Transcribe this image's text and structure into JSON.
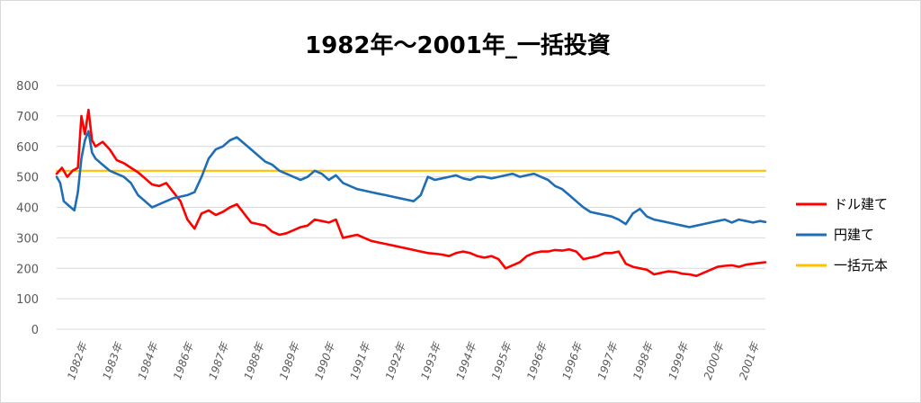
{
  "chart_data": {
    "type": "line",
    "title": "1982年～2001年_一括投資",
    "xlabel": "",
    "ylabel": "",
    "ylim": [
      0,
      800
    ],
    "yticks": [
      0,
      100,
      200,
      300,
      400,
      500,
      600,
      700,
      800
    ],
    "grid": true,
    "legend_position": "right",
    "x_tick_labels": [
      "1982年",
      "1983年",
      "1984年",
      "1986年",
      "1987年",
      "1988年",
      "1989年",
      "1990年",
      "1991年",
      "1992年",
      "1993年",
      "1994年",
      "1995年",
      "1996年",
      "1996年",
      "1997年",
      "1998年",
      "1999年",
      "2000年",
      "2001年"
    ],
    "x_range": [
      1981.9,
      2001.95
    ],
    "series": [
      {
        "name": "ドル建て",
        "color": "#ff0000",
        "points": [
          [
            1981.9,
            510
          ],
          [
            1982.05,
            530
          ],
          [
            1982.2,
            500
          ],
          [
            1982.35,
            520
          ],
          [
            1982.5,
            530
          ],
          [
            1982.6,
            700
          ],
          [
            1982.7,
            640
          ],
          [
            1982.8,
            720
          ],
          [
            1982.9,
            620
          ],
          [
            1983.0,
            600
          ],
          [
            1983.2,
            615
          ],
          [
            1983.4,
            590
          ],
          [
            1983.6,
            555
          ],
          [
            1983.8,
            545
          ],
          [
            1984.0,
            530
          ],
          [
            1984.2,
            515
          ],
          [
            1984.4,
            495
          ],
          [
            1984.6,
            475
          ],
          [
            1984.8,
            470
          ],
          [
            1985.0,
            480
          ],
          [
            1985.2,
            450
          ],
          [
            1985.4,
            420
          ],
          [
            1985.6,
            360
          ],
          [
            1985.8,
            330
          ],
          [
            1986.0,
            380
          ],
          [
            1986.2,
            390
          ],
          [
            1986.4,
            375
          ],
          [
            1986.6,
            385
          ],
          [
            1986.8,
            400
          ],
          [
            1987.0,
            410
          ],
          [
            1987.2,
            380
          ],
          [
            1987.4,
            350
          ],
          [
            1987.6,
            345
          ],
          [
            1987.8,
            340
          ],
          [
            1988.0,
            320
          ],
          [
            1988.2,
            310
          ],
          [
            1988.4,
            315
          ],
          [
            1988.6,
            325
          ],
          [
            1988.8,
            335
          ],
          [
            1989.0,
            340
          ],
          [
            1989.2,
            360
          ],
          [
            1989.4,
            355
          ],
          [
            1989.6,
            350
          ],
          [
            1989.8,
            360
          ],
          [
            1990.0,
            300
          ],
          [
            1990.2,
            305
          ],
          [
            1990.4,
            310
          ],
          [
            1990.6,
            300
          ],
          [
            1990.8,
            290
          ],
          [
            1991.0,
            285
          ],
          [
            1991.2,
            280
          ],
          [
            1991.4,
            275
          ],
          [
            1991.6,
            270
          ],
          [
            1991.8,
            265
          ],
          [
            1992.0,
            260
          ],
          [
            1992.2,
            255
          ],
          [
            1992.4,
            250
          ],
          [
            1992.6,
            248
          ],
          [
            1992.8,
            245
          ],
          [
            1993.0,
            240
          ],
          [
            1993.2,
            250
          ],
          [
            1993.4,
            255
          ],
          [
            1993.6,
            250
          ],
          [
            1993.8,
            240
          ],
          [
            1994.0,
            235
          ],
          [
            1994.2,
            240
          ],
          [
            1994.4,
            230
          ],
          [
            1994.6,
            200
          ],
          [
            1994.8,
            210
          ],
          [
            1995.0,
            220
          ],
          [
            1995.2,
            240
          ],
          [
            1995.4,
            250
          ],
          [
            1995.6,
            255
          ],
          [
            1995.8,
            255
          ],
          [
            1996.0,
            260
          ],
          [
            1996.2,
            258
          ],
          [
            1996.4,
            262
          ],
          [
            1996.6,
            255
          ],
          [
            1996.8,
            230
          ],
          [
            1997.0,
            235
          ],
          [
            1997.2,
            240
          ],
          [
            1997.4,
            250
          ],
          [
            1997.6,
            250
          ],
          [
            1997.8,
            255
          ],
          [
            1998.0,
            215
          ],
          [
            1998.2,
            205
          ],
          [
            1998.4,
            200
          ],
          [
            1998.6,
            195
          ],
          [
            1998.8,
            180
          ],
          [
            1999.0,
            185
          ],
          [
            1999.2,
            190
          ],
          [
            1999.4,
            188
          ],
          [
            1999.6,
            182
          ],
          [
            1999.8,
            180
          ],
          [
            2000.0,
            175
          ],
          [
            2000.2,
            185
          ],
          [
            2000.4,
            195
          ],
          [
            2000.6,
            205
          ],
          [
            2000.8,
            208
          ],
          [
            2001.0,
            210
          ],
          [
            2001.2,
            205
          ],
          [
            2001.4,
            212
          ],
          [
            2001.6,
            215
          ],
          [
            2001.8,
            218
          ],
          [
            2001.95,
            220
          ]
        ]
      },
      {
        "name": "円建て",
        "color": "#1f6eb5",
        "points": [
          [
            1981.9,
            500
          ],
          [
            1982.0,
            480
          ],
          [
            1982.1,
            420
          ],
          [
            1982.2,
            410
          ],
          [
            1982.3,
            400
          ],
          [
            1982.4,
            390
          ],
          [
            1982.5,
            450
          ],
          [
            1982.6,
            560
          ],
          [
            1982.7,
            620
          ],
          [
            1982.8,
            650
          ],
          [
            1982.9,
            580
          ],
          [
            1983.0,
            560
          ],
          [
            1983.2,
            540
          ],
          [
            1983.4,
            520
          ],
          [
            1983.6,
            510
          ],
          [
            1983.8,
            500
          ],
          [
            1984.0,
            480
          ],
          [
            1984.2,
            440
          ],
          [
            1984.4,
            420
          ],
          [
            1984.6,
            400
          ],
          [
            1984.8,
            410
          ],
          [
            1985.0,
            420
          ],
          [
            1985.2,
            430
          ],
          [
            1985.4,
            435
          ],
          [
            1985.6,
            440
          ],
          [
            1985.8,
            450
          ],
          [
            1986.0,
            500
          ],
          [
            1986.2,
            560
          ],
          [
            1986.4,
            590
          ],
          [
            1986.6,
            600
          ],
          [
            1986.8,
            620
          ],
          [
            1987.0,
            630
          ],
          [
            1987.2,
            610
          ],
          [
            1987.4,
            590
          ],
          [
            1987.6,
            570
          ],
          [
            1987.8,
            550
          ],
          [
            1988.0,
            540
          ],
          [
            1988.2,
            520
          ],
          [
            1988.4,
            510
          ],
          [
            1988.6,
            500
          ],
          [
            1988.8,
            490
          ],
          [
            1989.0,
            500
          ],
          [
            1989.2,
            520
          ],
          [
            1989.4,
            510
          ],
          [
            1989.6,
            490
          ],
          [
            1989.8,
            505
          ],
          [
            1990.0,
            480
          ],
          [
            1990.2,
            470
          ],
          [
            1990.4,
            460
          ],
          [
            1990.6,
            455
          ],
          [
            1990.8,
            450
          ],
          [
            1991.0,
            445
          ],
          [
            1991.2,
            440
          ],
          [
            1991.4,
            435
          ],
          [
            1991.6,
            430
          ],
          [
            1991.8,
            425
          ],
          [
            1992.0,
            420
          ],
          [
            1992.2,
            440
          ],
          [
            1992.4,
            500
          ],
          [
            1992.6,
            490
          ],
          [
            1992.8,
            495
          ],
          [
            1993.0,
            500
          ],
          [
            1993.2,
            505
          ],
          [
            1993.4,
            495
          ],
          [
            1993.6,
            490
          ],
          [
            1993.8,
            500
          ],
          [
            1994.0,
            500
          ],
          [
            1994.2,
            495
          ],
          [
            1994.4,
            500
          ],
          [
            1994.6,
            505
          ],
          [
            1994.8,
            510
          ],
          [
            1995.0,
            500
          ],
          [
            1995.2,
            505
          ],
          [
            1995.4,
            510
          ],
          [
            1995.6,
            500
          ],
          [
            1995.8,
            490
          ],
          [
            1996.0,
            470
          ],
          [
            1996.2,
            460
          ],
          [
            1996.4,
            440
          ],
          [
            1996.6,
            420
          ],
          [
            1996.8,
            400
          ],
          [
            1997.0,
            385
          ],
          [
            1997.2,
            380
          ],
          [
            1997.4,
            375
          ],
          [
            1997.6,
            370
          ],
          [
            1997.8,
            360
          ],
          [
            1998.0,
            345
          ],
          [
            1998.2,
            380
          ],
          [
            1998.4,
            395
          ],
          [
            1998.6,
            370
          ],
          [
            1998.8,
            360
          ],
          [
            1999.0,
            355
          ],
          [
            1999.2,
            350
          ],
          [
            1999.4,
            345
          ],
          [
            1999.6,
            340
          ],
          [
            1999.8,
            335
          ],
          [
            2000.0,
            340
          ],
          [
            2000.2,
            345
          ],
          [
            2000.4,
            350
          ],
          [
            2000.6,
            355
          ],
          [
            2000.8,
            360
          ],
          [
            2001.0,
            350
          ],
          [
            2001.2,
            360
          ],
          [
            2001.4,
            355
          ],
          [
            2001.6,
            350
          ],
          [
            2001.8,
            355
          ],
          [
            2001.95,
            352
          ]
        ]
      },
      {
        "name": "一括元本",
        "color": "#ffc000",
        "points": [
          [
            1981.9,
            520
          ],
          [
            2001.95,
            520
          ]
        ]
      }
    ]
  }
}
